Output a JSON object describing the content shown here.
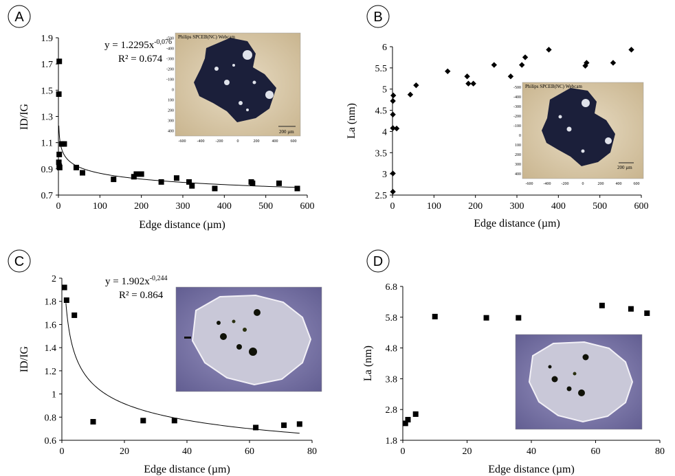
{
  "chart_data": [
    {
      "type": "scatter",
      "panel": "A",
      "xlabel": "Edge distance (µm)",
      "ylabel": "ID/IG",
      "xlim": [
        0,
        600
      ],
      "ylim": [
        0.7,
        1.9
      ],
      "xticks": [
        0,
        100,
        200,
        300,
        400,
        500,
        600
      ],
      "yticks": [
        0.7,
        0.9,
        1.1,
        1.3,
        1.5,
        1.7,
        1.9
      ],
      "marker": "square",
      "points": [
        [
          2,
          1.72
        ],
        [
          1,
          1.47
        ],
        [
          8,
          1.09
        ],
        [
          14,
          1.09
        ],
        [
          2,
          1.01
        ],
        [
          1,
          0.95
        ],
        [
          2,
          0.92
        ],
        [
          3,
          0.91
        ],
        [
          43,
          0.91
        ],
        [
          58,
          0.87
        ],
        [
          133,
          0.82
        ],
        [
          182,
          0.84
        ],
        [
          188,
          0.86
        ],
        [
          200,
          0.86
        ],
        [
          248,
          0.8
        ],
        [
          285,
          0.83
        ],
        [
          315,
          0.8
        ],
        [
          322,
          0.77
        ],
        [
          377,
          0.75
        ],
        [
          465,
          0.8
        ],
        [
          468,
          0.79
        ],
        [
          532,
          0.79
        ],
        [
          576,
          0.75
        ]
      ],
      "fit": {
        "type": "power",
        "a": 1.2295,
        "b": -0.076,
        "x_from": 1,
        "x_to": 580
      },
      "equation": {
        "lhs": "y = 1.2295x",
        "exp": "-0,076",
        "r2": "R² = 0.674"
      },
      "inset": {
        "caption": "Philips SPCEB(NC) Webcam",
        "scale": "200 µm",
        "xticks": [
          "-600",
          "-400",
          "-200",
          "0",
          "200",
          "400",
          "600"
        ],
        "yticks": [
          "-500",
          "-400",
          "-300",
          "-200",
          "-100",
          "0",
          "100",
          "200",
          "300",
          "400"
        ]
      }
    },
    {
      "type": "scatter",
      "panel": "B",
      "xlabel": "Edge distance (µm)",
      "ylabel": "La (nm)",
      "xlim": [
        0,
        600
      ],
      "ylim": [
        2.5,
        6.0
      ],
      "xticks": [
        0,
        100,
        200,
        300,
        400,
        500,
        600
      ],
      "yticks": [
        2.5,
        3,
        3.5,
        4,
        4.5,
        5,
        5.5,
        6
      ],
      "ytick_labels": [
        "2.5",
        "3",
        "3.5",
        "4",
        "4.5",
        "5",
        "5.5",
        "6"
      ],
      "marker": "diamond",
      "points": [
        [
          1,
          2.58
        ],
        [
          1,
          3.01
        ],
        [
          1,
          4.08
        ],
        [
          1,
          4.4
        ],
        [
          1,
          4.72
        ],
        [
          2,
          4.85
        ],
        [
          10,
          4.07
        ],
        [
          43,
          4.87
        ],
        [
          57,
          5.09
        ],
        [
          133,
          5.42
        ],
        [
          180,
          5.3
        ],
        [
          183,
          5.13
        ],
        [
          195,
          5.13
        ],
        [
          245,
          5.57
        ],
        [
          285,
          5.3
        ],
        [
          312,
          5.57
        ],
        [
          320,
          5.75
        ],
        [
          377,
          5.93
        ],
        [
          465,
          5.55
        ],
        [
          468,
          5.62
        ],
        [
          532,
          5.62
        ],
        [
          576,
          5.93
        ]
      ],
      "inset": {
        "caption": "Philips SPCEB(NC) Webcam",
        "scale": "200 µm",
        "xticks": [
          "-600",
          "-400",
          "-200",
          "0",
          "200",
          "400",
          "600"
        ],
        "yticks": [
          "-500",
          "-400",
          "-300",
          "-200",
          "-100",
          "0",
          "100",
          "200",
          "300",
          "400"
        ]
      }
    },
    {
      "type": "scatter",
      "panel": "C",
      "xlabel": "Edge distance (µm)",
      "ylabel": "ID/IG",
      "xlim": [
        0,
        80
      ],
      "ylim": [
        0.6,
        2.0
      ],
      "xticks": [
        0,
        20,
        40,
        60,
        80
      ],
      "yticks": [
        0.6,
        0.8,
        1.0,
        1.2,
        1.4,
        1.6,
        1.8,
        2.0
      ],
      "ytick_labels": [
        "0.6",
        "0.8",
        "1",
        "1.2",
        "1.4",
        "1.6",
        "1.8",
        "2"
      ],
      "marker": "square",
      "points": [
        [
          0.8,
          1.92
        ],
        [
          1.5,
          1.81
        ],
        [
          4,
          1.68
        ],
        [
          10,
          0.76
        ],
        [
          26,
          0.77
        ],
        [
          36,
          0.77
        ],
        [
          62,
          0.71
        ],
        [
          71,
          0.73
        ],
        [
          76,
          0.74
        ]
      ],
      "fit": {
        "type": "power",
        "a": 1.902,
        "b": -0.244,
        "x_from": 1.3,
        "x_to": 76
      },
      "equation": {
        "lhs": "y = 1.902x",
        "exp": "-0,244",
        "r2": "R² = 0.864"
      }
    },
    {
      "type": "scatter",
      "panel": "D",
      "xlabel": "Edge distance (µm)",
      "ylabel": "La (nm)",
      "xlim": [
        0,
        80
      ],
      "ylim": [
        1.8,
        6.8
      ],
      "xticks": [
        0,
        20,
        40,
        60,
        80
      ],
      "yticks": [
        1.8,
        2.8,
        3.8,
        4.8,
        5.8,
        6.8
      ],
      "ytick_labels": [
        "1.8",
        "2.8",
        "3.8",
        "4.8",
        "5.8",
        "6.8"
      ],
      "marker": "square",
      "points": [
        [
          0.8,
          2.35
        ],
        [
          1.6,
          2.47
        ],
        [
          4,
          2.65
        ],
        [
          10,
          5.82
        ],
        [
          26,
          5.78
        ],
        [
          36,
          5.78
        ],
        [
          62,
          6.18
        ],
        [
          71,
          6.07
        ],
        [
          76,
          5.93
        ]
      ]
    }
  ],
  "panels": {
    "a": "A",
    "b": "B",
    "c": "C",
    "d": "D"
  }
}
